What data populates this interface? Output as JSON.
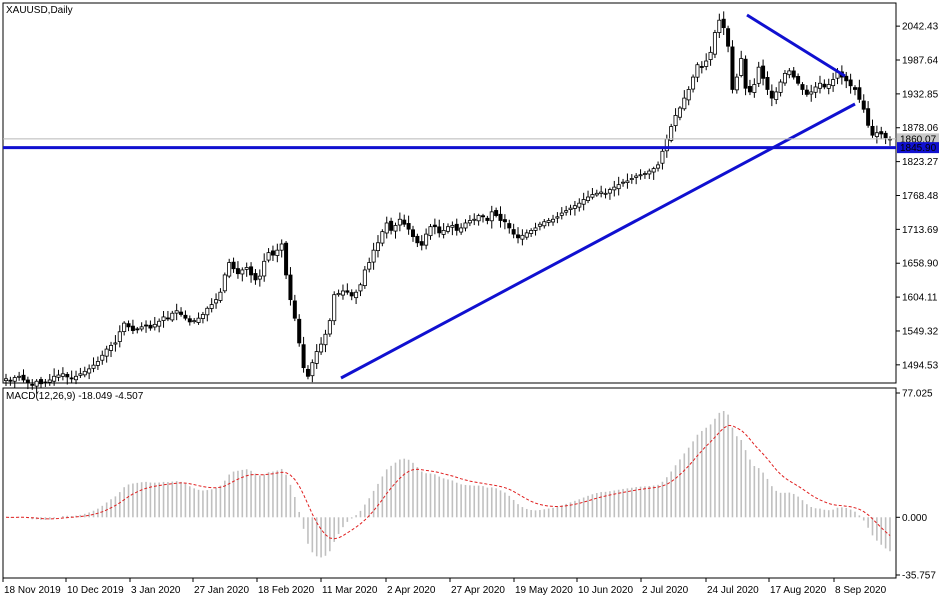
{
  "chart_data": [
    {
      "type": "candlestick",
      "title": "XAUUSD,Daily",
      "ylim": [
        1470,
        2075
      ],
      "y_ticks": [
        "2042.43",
        "1987.64",
        "1932.85",
        "1878.06",
        "1823.27",
        "1768.48",
        "1713.69",
        "1658.90",
        "1604.11",
        "1549.32",
        "1494.53"
      ],
      "x_ticks": [
        "18 Nov 2019",
        "10 Dec 2019",
        "3 Jan 2020",
        "27 Jan 2020",
        "18 Feb 2020",
        "11 Mar 2020",
        "2 Apr 2020",
        "27 Apr 2020",
        "19 May 2020",
        "10 Jun 2020",
        "2 Jul 2020",
        "24 Jul 2020",
        "17 Aug 2020",
        "8 Sep 2020"
      ],
      "current_price": "1845.90",
      "ask_price": "1860.07",
      "closes": [
        1472,
        1468,
        1474,
        1476,
        1470,
        1465,
        1462,
        1468,
        1464,
        1466,
        1470,
        1476,
        1478,
        1480,
        1475,
        1472,
        1476,
        1480,
        1484,
        1488,
        1494,
        1500,
        1510,
        1520,
        1526,
        1530,
        1548,
        1562,
        1556,
        1550,
        1552,
        1556,
        1558,
        1554,
        1560,
        1565,
        1572,
        1570,
        1578,
        1582,
        1576,
        1570,
        1564,
        1566,
        1570,
        1576,
        1586,
        1592,
        1600,
        1612,
        1640,
        1660,
        1650,
        1642,
        1648,
        1652,
        1640,
        1632,
        1638,
        1662,
        1676,
        1672,
        1680,
        1690,
        1640,
        1600,
        1570,
        1530,
        1490,
        1476,
        1498,
        1516,
        1528,
        1544,
        1566,
        1608,
        1610,
        1614,
        1612,
        1606,
        1612,
        1624,
        1648,
        1660,
        1680,
        1692,
        1710,
        1724,
        1712,
        1720,
        1730,
        1722,
        1714,
        1702,
        1692,
        1688,
        1706,
        1718,
        1718,
        1708,
        1712,
        1718,
        1720,
        1712,
        1716,
        1724,
        1728,
        1730,
        1736,
        1734,
        1728,
        1742,
        1736,
        1728,
        1726,
        1716,
        1706,
        1700,
        1704,
        1708,
        1712,
        1716,
        1722,
        1726,
        1728,
        1730,
        1734,
        1740,
        1744,
        1748,
        1752,
        1756,
        1762,
        1766,
        1770,
        1772,
        1774,
        1772,
        1778,
        1782,
        1786,
        1790,
        1792,
        1796,
        1800,
        1802,
        1804,
        1808,
        1812,
        1818,
        1840,
        1860,
        1880,
        1898,
        1910,
        1926,
        1940,
        1960,
        1980,
        1976,
        1986,
        2000,
        2032,
        2052,
        2040,
        2010,
        1940,
        1960,
        1990,
        1942,
        1936,
        1948,
        1976,
        1958,
        1940,
        1926,
        1936,
        1952,
        1966,
        1970,
        1960,
        1950,
        1940,
        1932,
        1936,
        1944,
        1950,
        1944,
        1948,
        1956,
        1968,
        1960,
        1954,
        1946,
        1940,
        1924,
        1908,
        1882,
        1866,
        1870,
        1868,
        1862,
        1860
      ],
      "macd_indicator": {
        "label": "MACD(12,26,9) -18.049 -4.507",
        "macd_value": -18.049,
        "signal_value": -4.507,
        "ylim": [
          -35.757,
          77.025
        ],
        "y_ticks": [
          "77.025",
          "0.000",
          "-35.757"
        ]
      }
    }
  ]
}
